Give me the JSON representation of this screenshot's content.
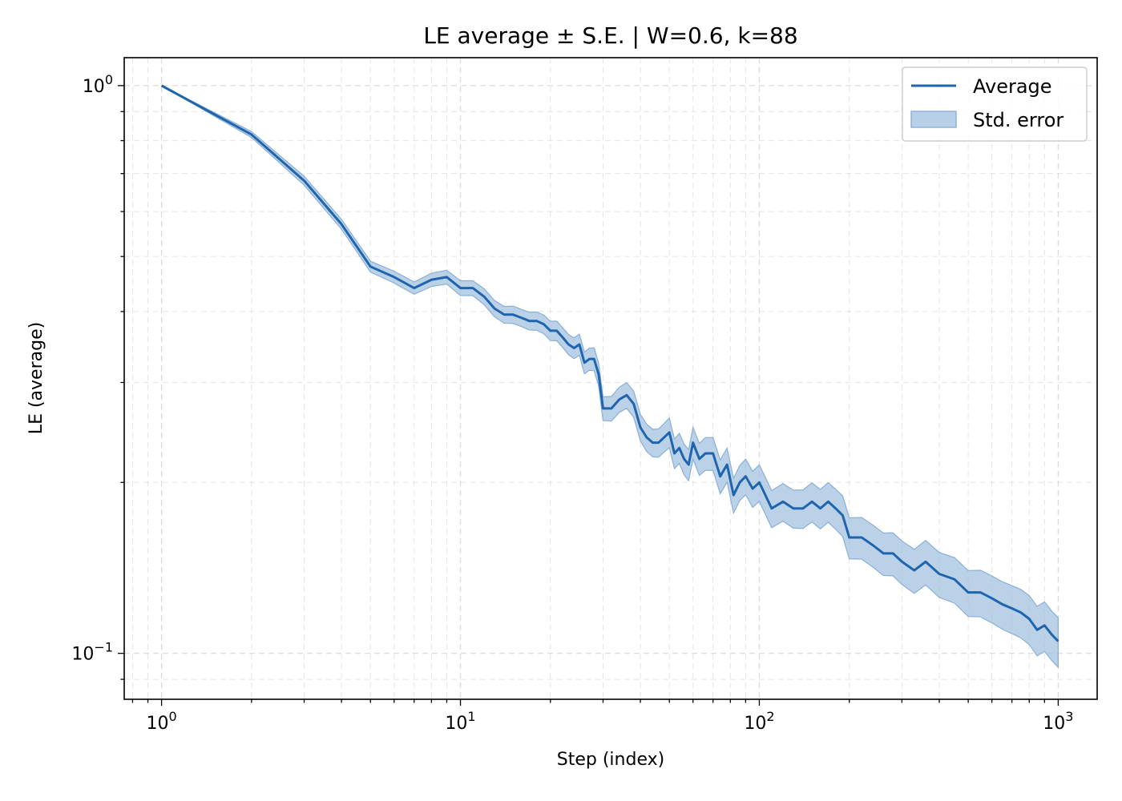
{
  "chart_data": {
    "type": "line",
    "title": "LE average ± S.E. | W=0.6, k=88",
    "xlabel": "Step (index)",
    "ylabel": "LE (average)",
    "xscale": "log",
    "yscale": "log",
    "xlim": [
      0.75,
      1350
    ],
    "ylim": [
      0.083,
      1.12
    ],
    "xticks": [
      {
        "value": 1,
        "base": "10",
        "exp": "0"
      },
      {
        "value": 10,
        "base": "10",
        "exp": "1"
      },
      {
        "value": 100,
        "base": "10",
        "exp": "2"
      },
      {
        "value": 1000,
        "base": "10",
        "exp": "3"
      }
    ],
    "yticks": [
      {
        "value": 0.1,
        "base": "10",
        "exp": "−1"
      },
      {
        "value": 1,
        "base": "10",
        "exp": "0"
      }
    ],
    "grid": true,
    "legend_position": "top-right",
    "colors": {
      "line": "#1f65ad",
      "band": "#9fbfdf",
      "band_edge": "#8ab0d6"
    },
    "series": [
      {
        "name": "Average",
        "kind": "line",
        "x": [
          1,
          2,
          3,
          4,
          5,
          6,
          7,
          8,
          9,
          10,
          11,
          12,
          13,
          14,
          15,
          16,
          17,
          18,
          19,
          20,
          21,
          22,
          23,
          24,
          25,
          26,
          27,
          28,
          29,
          30,
          32,
          34,
          36,
          38,
          40,
          42,
          44,
          46,
          48,
          50,
          52,
          54,
          56,
          58,
          60,
          63,
          66,
          70,
          74,
          78,
          82,
          86,
          90,
          95,
          100,
          110,
          120,
          130,
          140,
          150,
          160,
          170,
          180,
          190,
          200,
          220,
          240,
          260,
          280,
          300,
          330,
          360,
          400,
          450,
          500,
          550,
          600,
          650,
          700,
          750,
          800,
          850,
          900,
          950,
          1000
        ],
        "y": [
          1.0,
          0.82,
          0.68,
          0.57,
          0.48,
          0.46,
          0.44,
          0.455,
          0.46,
          0.44,
          0.44,
          0.425,
          0.405,
          0.395,
          0.395,
          0.39,
          0.385,
          0.385,
          0.38,
          0.37,
          0.37,
          0.36,
          0.35,
          0.345,
          0.35,
          0.325,
          0.33,
          0.33,
          0.31,
          0.27,
          0.27,
          0.28,
          0.285,
          0.275,
          0.25,
          0.24,
          0.235,
          0.235,
          0.24,
          0.245,
          0.225,
          0.23,
          0.22,
          0.215,
          0.235,
          0.22,
          0.225,
          0.225,
          0.205,
          0.215,
          0.19,
          0.2,
          0.205,
          0.195,
          0.2,
          0.18,
          0.185,
          0.18,
          0.18,
          0.185,
          0.18,
          0.185,
          0.18,
          0.175,
          0.16,
          0.16,
          0.155,
          0.15,
          0.15,
          0.145,
          0.14,
          0.145,
          0.138,
          0.135,
          0.128,
          0.128,
          0.125,
          0.122,
          0.12,
          0.118,
          0.115,
          0.11,
          0.112,
          0.108,
          0.105
        ]
      },
      {
        "name": "Std. error",
        "kind": "band",
        "rel_err": [
          0.0,
          0.012,
          0.018,
          0.02,
          0.022,
          0.024,
          0.025,
          0.027,
          0.028,
          0.03,
          0.03,
          0.032,
          0.033,
          0.034,
          0.035,
          0.035,
          0.036,
          0.037,
          0.038,
          0.039,
          0.04,
          0.04,
          0.041,
          0.042,
          0.043,
          0.044,
          0.045,
          0.046,
          0.047,
          0.048,
          0.05,
          0.051,
          0.052,
          0.053,
          0.054,
          0.055,
          0.056,
          0.057,
          0.058,
          0.06,
          0.06,
          0.061,
          0.062,
          0.063,
          0.064,
          0.065,
          0.066,
          0.067,
          0.068,
          0.069,
          0.07,
          0.071,
          0.072,
          0.073,
          0.074,
          0.075,
          0.076,
          0.077,
          0.078,
          0.079,
          0.08,
          0.08,
          0.081,
          0.082,
          0.083,
          0.084,
          0.085,
          0.086,
          0.087,
          0.088,
          0.089,
          0.09,
          0.091,
          0.092,
          0.093,
          0.094,
          0.095,
          0.096,
          0.097,
          0.098,
          0.099,
          0.1,
          0.1,
          0.1,
          0.1
        ]
      }
    ]
  }
}
